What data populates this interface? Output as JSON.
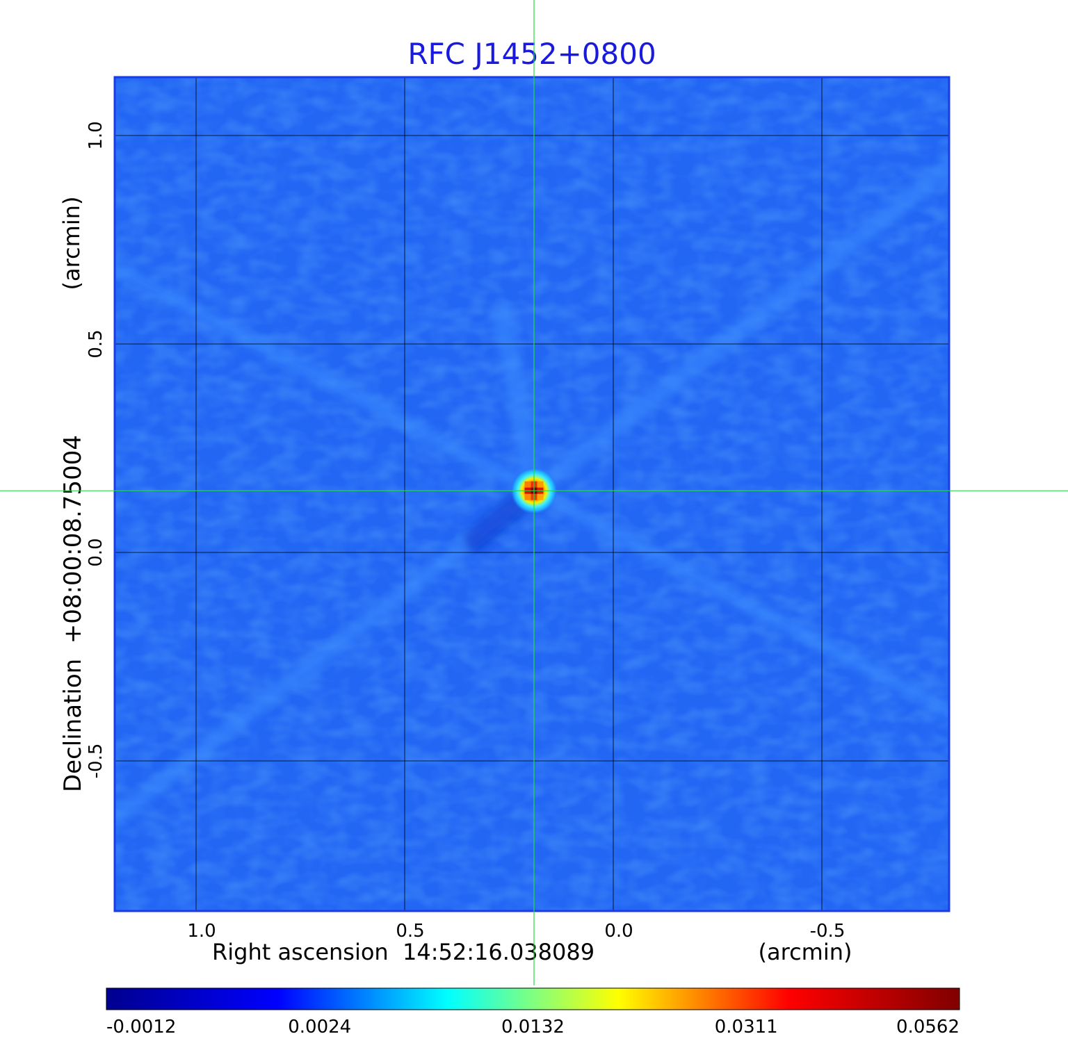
{
  "chart_data": {
    "type": "heatmap",
    "title": "RFC J1452+0800",
    "xlabel": "Right ascension  14:52:16.038089",
    "xunit": "(arcmin)",
    "ylabel": "Declination  +08:00:08.75004",
    "yunit": "(arcmin)",
    "xlim": [
      1.195,
      -0.805
    ],
    "ylim": [
      -0.86,
      1.14
    ],
    "x_reversed": true,
    "xticks": [
      1.0,
      0.5,
      0.0,
      -0.5
    ],
    "xtick_labels": [
      "1.0",
      "0.5",
      "0.0",
      "-0.5"
    ],
    "yticks": [
      -0.5,
      0.0,
      0.5,
      1.0
    ],
    "ytick_labels": [
      "-0.5",
      "0.0",
      "0.5",
      "1.0"
    ],
    "grid": true,
    "crosshair": {
      "x": 0.19,
      "y": 0.148
    },
    "source_peak": {
      "x": 0.19,
      "y": 0.148,
      "value": 0.0562
    },
    "colormap": "jet",
    "colorbar": {
      "ticks": [
        "-0.0012",
        "0.0024",
        "0.0132",
        "0.0311",
        "0.0562"
      ],
      "colors": [
        "#00008f",
        "#0000ff",
        "#00ffff",
        "#ffff00",
        "#ff0000",
        "#800000"
      ]
    },
    "colors": {
      "title": "#1a1adc",
      "frame": "#1a3ce6",
      "crosshair": "#22dd44",
      "grid": "#000000",
      "background_field": "#2266f4"
    }
  }
}
